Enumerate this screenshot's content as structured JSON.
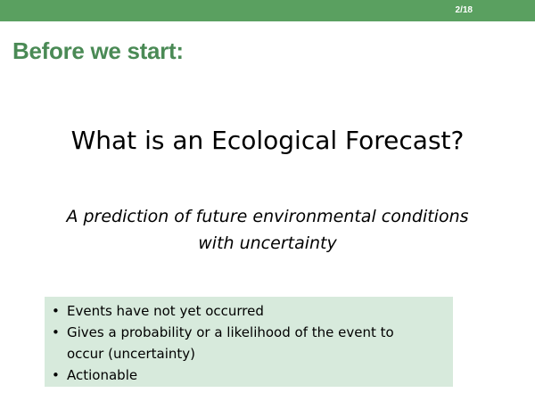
{
  "header": {
    "page_number": "2/18",
    "accent_color": "#5aa060"
  },
  "slide": {
    "section_heading": "Before we start:",
    "title": "What is an Ecological Forecast?",
    "definition_lines": [
      "A prediction of future environmental conditions",
      "with uncertainty"
    ],
    "bullet_box_color": "#d7eadc",
    "bullets": [
      [
        "Events have not yet occurred"
      ],
      [
        "Gives a probability or a likelihood of the event to",
        "occur (uncertainty)"
      ],
      [
        "Actionable"
      ]
    ],
    "bullet_symbol": "•"
  }
}
